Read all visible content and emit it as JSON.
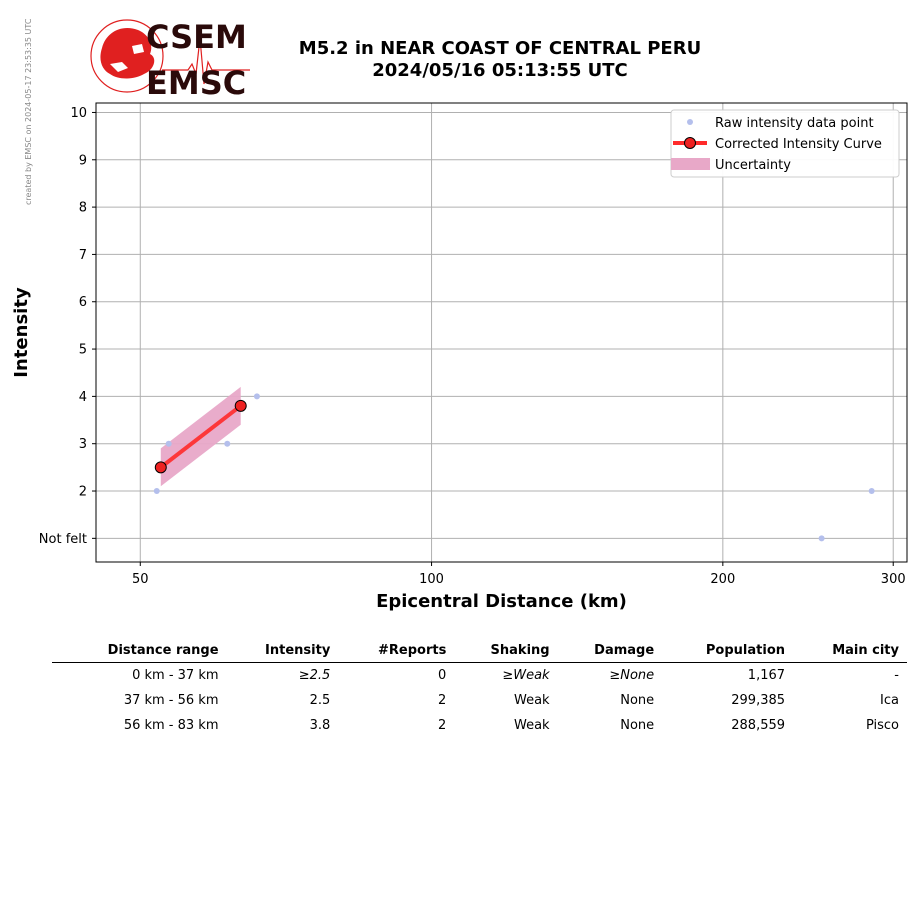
{
  "credit": "created by EMSC on 2024-05-17 23:53:35 UTC",
  "logo": {
    "text_top": "CSEM",
    "text_bottom": "EMSC"
  },
  "header": {
    "line1": "M5.2 in NEAR COAST OF CENTRAL PERU",
    "line2": "2024/05/16 05:13:55 UTC"
  },
  "colors": {
    "raw": "#b4bfec",
    "curve": "#ff2a2a",
    "uncertainty": "#e8a8c8",
    "marker_face": "#ee2222",
    "grid": "#b0b0b0",
    "logo_red": "#e02020",
    "logo_dark": "#2a0a0a"
  },
  "chart_data": {
    "type": "scatter",
    "xlabel": "Epicentral Distance (km)",
    "ylabel": "Intensity",
    "xscale": "log",
    "xlim": [
      45,
      310
    ],
    "ylim": [
      0.5,
      10.2
    ],
    "xticks": [
      50,
      100,
      200,
      300
    ],
    "xtick_labels": [
      "50",
      "100",
      "200",
      "300"
    ],
    "yticks": [
      1,
      2,
      3,
      4,
      5,
      6,
      7,
      8,
      9,
      10
    ],
    "ytick_labels": [
      "Not felt",
      "2",
      "3",
      "4",
      "5",
      "6",
      "7",
      "8",
      "9",
      "10"
    ],
    "grid": true,
    "legend_position": "top-right",
    "series": [
      {
        "name": "Raw intensity data point",
        "kind": "points",
        "x": [
          52,
          53.5,
          61.5,
          66,
          253,
          285
        ],
        "y": [
          2,
          3,
          3,
          4,
          1,
          2
        ]
      },
      {
        "name": "Corrected Intensity Curve",
        "kind": "line",
        "x": [
          52.5,
          63.5
        ],
        "y": [
          2.5,
          3.8
        ]
      },
      {
        "name": "Uncertainty",
        "kind": "band",
        "x": [
          52.5,
          63.5
        ],
        "lower": [
          2.1,
          3.4
        ],
        "upper": [
          2.9,
          4.2
        ]
      }
    ]
  },
  "table": {
    "headers": [
      "Distance range",
      "Intensity",
      "#Reports",
      "Shaking",
      "Damage",
      "Population",
      "Main city"
    ],
    "rows": [
      [
        "0 km -   37 km",
        "≥2.5",
        "0",
        "≥Weak",
        "≥None",
        "1,167",
        "-"
      ],
      [
        "37 km -   56 km",
        "2.5",
        "2",
        "Weak",
        "None",
        "299,385",
        "Ica"
      ],
      [
        "56 km -   83 km",
        "3.8",
        "2",
        "Weak",
        "None",
        "288,559",
        "Pisco"
      ]
    ]
  }
}
